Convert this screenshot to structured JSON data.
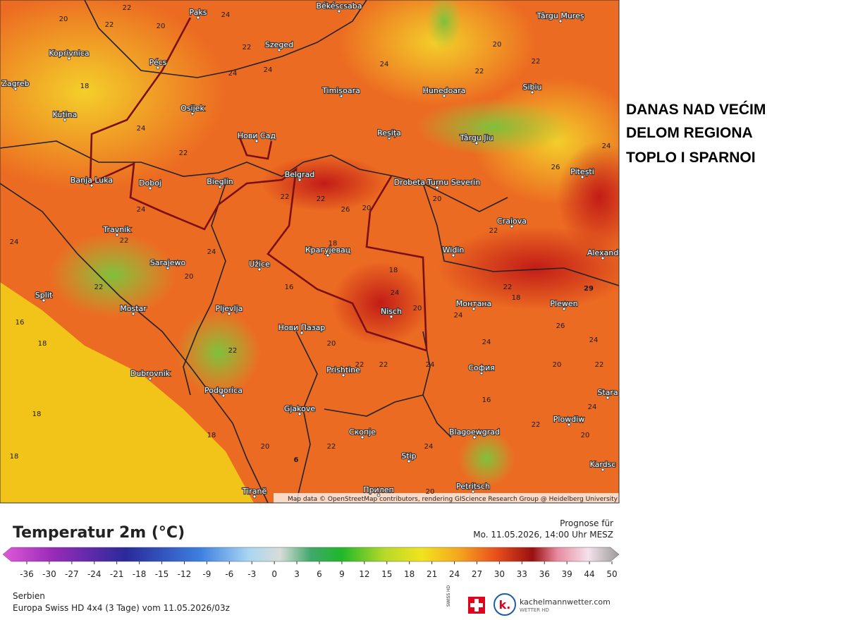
{
  "headline": [
    "DANAS NAD VEĆIM",
    "DELOM REGIONA",
    "TOPLO I SPARNOI"
  ],
  "map": {
    "cities": [
      "Paks",
      "Békéscsaba",
      "Târgu Mureș",
      "Koprivnica",
      "Pécs",
      "Szeged",
      "Zagreb",
      "Timișoara",
      "Hunedoara",
      "Sibiu",
      "Kutina",
      "Osijek",
      "Нови Сад",
      "Reșița",
      "Târgu Jiu",
      "Pitești",
      "Banja Luka",
      "Doboj",
      "Bieglin",
      "Belgrad",
      "Drobeta-Turnu Severin",
      "Craiova",
      "Travnik",
      "Крагујевац",
      "Widin",
      "Alexand",
      "Sarajewo",
      "Užice",
      "Split",
      "Mostar",
      "Pljevlja",
      "Монтана",
      "Plewen",
      "Nisch",
      "Нови Пазар",
      "Dubrovnik",
      "Prishtine",
      "София",
      "Podgorica",
      "Gjakove",
      "Stara",
      "Plowdiw",
      "Скопје",
      "Blagoewgrad",
      "Stip",
      "Kardsc",
      "Tiranë",
      "Petritsch",
      "Прилеп"
    ],
    "temperatures": [
      22,
      22,
      24,
      20,
      22,
      24,
      18,
      24,
      22,
      20,
      24,
      22,
      24,
      22,
      18,
      20,
      24,
      22,
      18,
      20,
      22,
      24,
      22,
      26,
      24,
      22,
      16,
      20,
      26,
      24,
      18,
      22,
      24,
      20,
      26,
      24,
      22,
      18,
      16,
      20,
      22,
      24,
      20,
      22,
      24,
      18,
      20,
      22,
      24,
      22,
      16,
      20,
      18,
      22,
      24,
      20,
      22,
      18,
      24,
      20,
      29,
      6
    ],
    "attribution": "Map data © OpenStreetMap contributors, rendering GIScience Research Group @ Heidelberg University"
  },
  "legend": {
    "title": "Temperatur 2m (°C)",
    "forecast_label": "Prognose für",
    "forecast_time": "Mo. 11.05.2026, 14:00 Uhr MESZ",
    "scale_ticks": [
      -36,
      -30,
      -27,
      -24,
      -21,
      -18,
      -15,
      -12,
      -9,
      -6,
      -3,
      0,
      3,
      6,
      9,
      12,
      15,
      18,
      21,
      24,
      27,
      30,
      33,
      36,
      39,
      44,
      50
    ],
    "region": "Serbien",
    "model": "Europa Swiss HD 4x4 (3 Tage) vom 11.05.2026/03z",
    "swiss_label": "SWISS HD",
    "brand_logo": "k.",
    "brand": "kachelmannwetter.com",
    "brand_sub": "WETTER HD"
  }
}
